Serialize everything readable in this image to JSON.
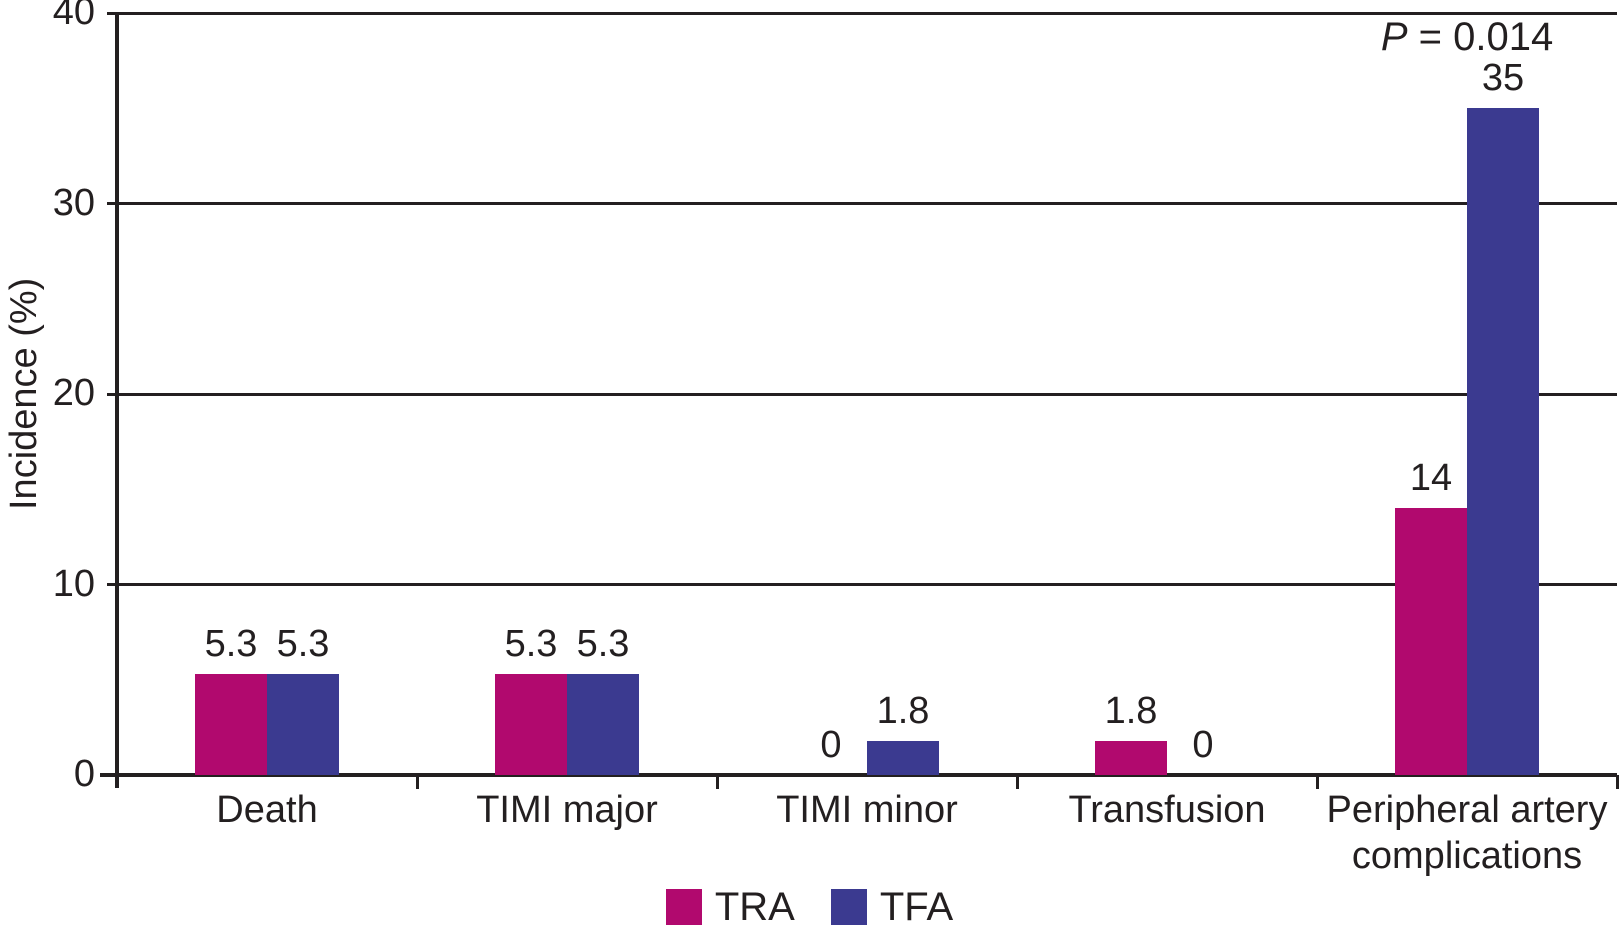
{
  "chart_data": {
    "type": "bar",
    "title": "",
    "ylabel": "Incidence (%)",
    "xlabel": "",
    "ylim": [
      0,
      40
    ],
    "y_ticks": [
      0,
      10,
      20,
      30,
      40
    ],
    "grid": "horizontal-solid",
    "legend_position": "bottom-center",
    "categories": [
      "Death",
      "TIMI major",
      "TIMI minor",
      "Transfusion",
      "Peripheral artery\ncomplications"
    ],
    "series": [
      {
        "name": "TRA",
        "color": "#b1096e",
        "values": [
          5.3,
          5.3,
          0,
          1.8,
          14
        ]
      },
      {
        "name": "TFA",
        "color": "#3b3a90",
        "values": [
          5.3,
          5.3,
          1.8,
          0,
          35
        ]
      }
    ],
    "value_labels": [
      [
        "5.3",
        "5.3",
        "0",
        "1.8",
        "14"
      ],
      [
        "5.3",
        "5.3",
        "1.8",
        "0",
        "35"
      ]
    ],
    "annotation": {
      "prefix": "P",
      "rest": " = 0.014",
      "category_index": 4
    },
    "axis_color": "#231f20",
    "background_color": "#ffffff"
  }
}
